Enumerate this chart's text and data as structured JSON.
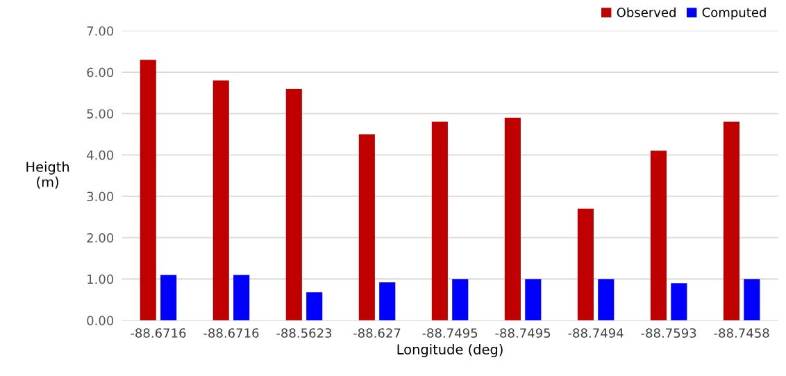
{
  "chart_data": {
    "type": "bar",
    "xlabel": "Longitude (deg)",
    "ylabel": "Heigth\n(m)",
    "categories": [
      "-88.6716",
      "-88.6716",
      "-88.5623",
      "-88.627",
      "-88.7495",
      "-88.7495",
      "-88.7494",
      "-88.7593",
      "-88.7458"
    ],
    "series": [
      {
        "name": "Observed",
        "color": "#c00000",
        "values": [
          6.3,
          5.8,
          5.6,
          4.5,
          4.8,
          4.9,
          2.7,
          4.1,
          4.8
        ]
      },
      {
        "name": "Computed",
        "color": "#0000ff",
        "values": [
          1.1,
          1.1,
          0.68,
          0.92,
          1.0,
          1.0,
          1.0,
          0.9,
          1.0
        ]
      }
    ],
    "ylim": [
      0,
      7
    ],
    "yticks": [
      {
        "value": 0,
        "label": "0.00"
      },
      {
        "value": 1,
        "label": "1.00"
      },
      {
        "value": 2,
        "label": "2.00"
      },
      {
        "value": 3,
        "label": "3.00"
      },
      {
        "value": 4,
        "label": "4.00"
      },
      {
        "value": 5,
        "label": "5.00"
      },
      {
        "value": 6,
        "label": "6.00"
      },
      {
        "value": 7,
        "label": "7.00"
      }
    ],
    "grid": "y",
    "legend": "top right"
  }
}
